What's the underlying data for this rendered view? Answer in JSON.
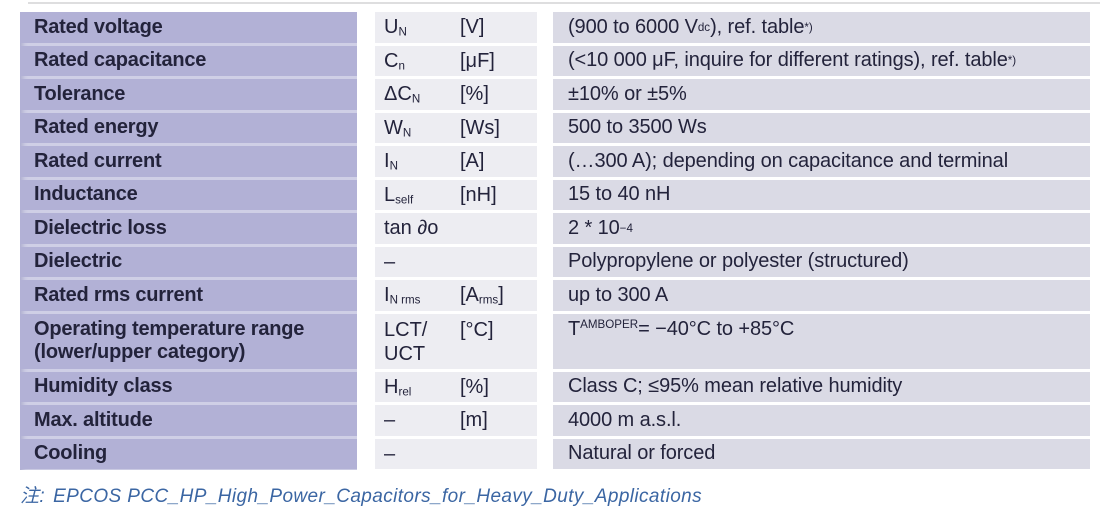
{
  "table": {
    "rows": [
      {
        "param": "Rated voltage",
        "symbol": [
          {
            "t": "U"
          },
          {
            "t": "N",
            "s": "sub"
          }
        ],
        "unit": [
          {
            "t": "[V]"
          }
        ],
        "value": [
          {
            "t": "(900 to 6000 V"
          },
          {
            "t": "dc",
            "s": "sub"
          },
          {
            "t": "), ref. table"
          },
          {
            "t": "*)",
            "s": "sup"
          }
        ]
      },
      {
        "param": "Rated capacitance",
        "symbol": [
          {
            "t": "C"
          },
          {
            "t": "n",
            "s": "sub"
          }
        ],
        "unit": [
          {
            "t": "[μF]"
          }
        ],
        "value": [
          {
            "t": "(<10 000 μF, inquire for different ratings), ref. table"
          },
          {
            "t": "*)",
            "s": "sup"
          }
        ]
      },
      {
        "param": "Tolerance",
        "symbol": [
          {
            "t": "ΔC"
          },
          {
            "t": "N",
            "s": "sub"
          }
        ],
        "unit": [
          {
            "t": "[%]"
          }
        ],
        "value": [
          {
            "t": "±10% or ±5%"
          }
        ]
      },
      {
        "param": "Rated energy",
        "symbol": [
          {
            "t": "W"
          },
          {
            "t": "N",
            "s": "sub"
          }
        ],
        "unit": [
          {
            "t": "[Ws]"
          }
        ],
        "value": [
          {
            "t": "500 to 3500 Ws"
          }
        ]
      },
      {
        "param": "Rated current",
        "symbol": [
          {
            "t": "I"
          },
          {
            "t": "N",
            "s": "sub"
          }
        ],
        "unit": [
          {
            "t": "[A]"
          }
        ],
        "value": [
          {
            "t": "(…300 A); depending on capacitance and terminal"
          }
        ]
      },
      {
        "param": "Inductance",
        "symbol": [
          {
            "t": "L"
          },
          {
            "t": "self",
            "s": "sub"
          }
        ],
        "unit": [
          {
            "t": "[nH]"
          }
        ],
        "value": [
          {
            "t": "15 to 40 nH"
          }
        ]
      },
      {
        "param": "Dielectric loss",
        "symbol": [
          {
            "t": "tan ∂o"
          }
        ],
        "unit": [],
        "value": [
          {
            "t": "2 * 10"
          },
          {
            "t": "−4",
            "s": "sup"
          }
        ]
      },
      {
        "param": "Dielectric",
        "symbol": [
          {
            "t": "–"
          }
        ],
        "unit": [],
        "value": [
          {
            "t": "Polypropylene or polyester (structured)"
          }
        ]
      },
      {
        "param": "Rated rms current",
        "symbol": [
          {
            "t": "I"
          },
          {
            "t": "N rms",
            "s": "sub"
          }
        ],
        "unit": [
          {
            "t": "[A"
          },
          {
            "t": "rms",
            "s": "sub"
          },
          {
            "t": "]"
          }
        ],
        "value": [
          {
            "t": "up to 300 A"
          }
        ]
      },
      {
        "param": "Operating temperature range",
        "param2": "(lower/upper category)",
        "tall": true,
        "symbol": [
          {
            "t": "LCT/"
          },
          {
            "br": true
          },
          {
            "t": "UCT"
          }
        ],
        "unit": [
          {
            "t": "[°C]"
          }
        ],
        "value": [
          {
            "t": "T"
          },
          {
            "t": "AMBOPER",
            "s": "sub"
          },
          {
            "t": " = −40°C to +85°C"
          }
        ]
      },
      {
        "param": "Humidity class",
        "symbol": [
          {
            "t": "H"
          },
          {
            "t": "rel",
            "s": "sub"
          }
        ],
        "unit": [
          {
            "t": "[%]"
          }
        ],
        "value": [
          {
            "t": "Class C; ≤95% mean relative humidity"
          }
        ]
      },
      {
        "param": "Max. altitude",
        "symbol": [
          {
            "t": "–"
          }
        ],
        "unit": [
          {
            "t": "[m]"
          }
        ],
        "value": [
          {
            "t": "4000 m a.s.l."
          }
        ]
      },
      {
        "param": "Cooling",
        "symbol": [
          {
            "t": "–"
          }
        ],
        "unit": [],
        "value": [
          {
            "t": "Natural or forced"
          }
        ]
      }
    ]
  },
  "footer": {
    "prefix": "注:",
    "text": "EPCOS PCC_HP_High_Power_Capacitors_for_Heavy_Duty_Applications"
  },
  "colors": {
    "param_bg": "#b2b1d6",
    "param_sep": "#cfcfe6",
    "sym_bg": "#ededf2",
    "val_bg": "#dadae5",
    "text": "#23233b",
    "footer_text": "#3b66a3"
  }
}
